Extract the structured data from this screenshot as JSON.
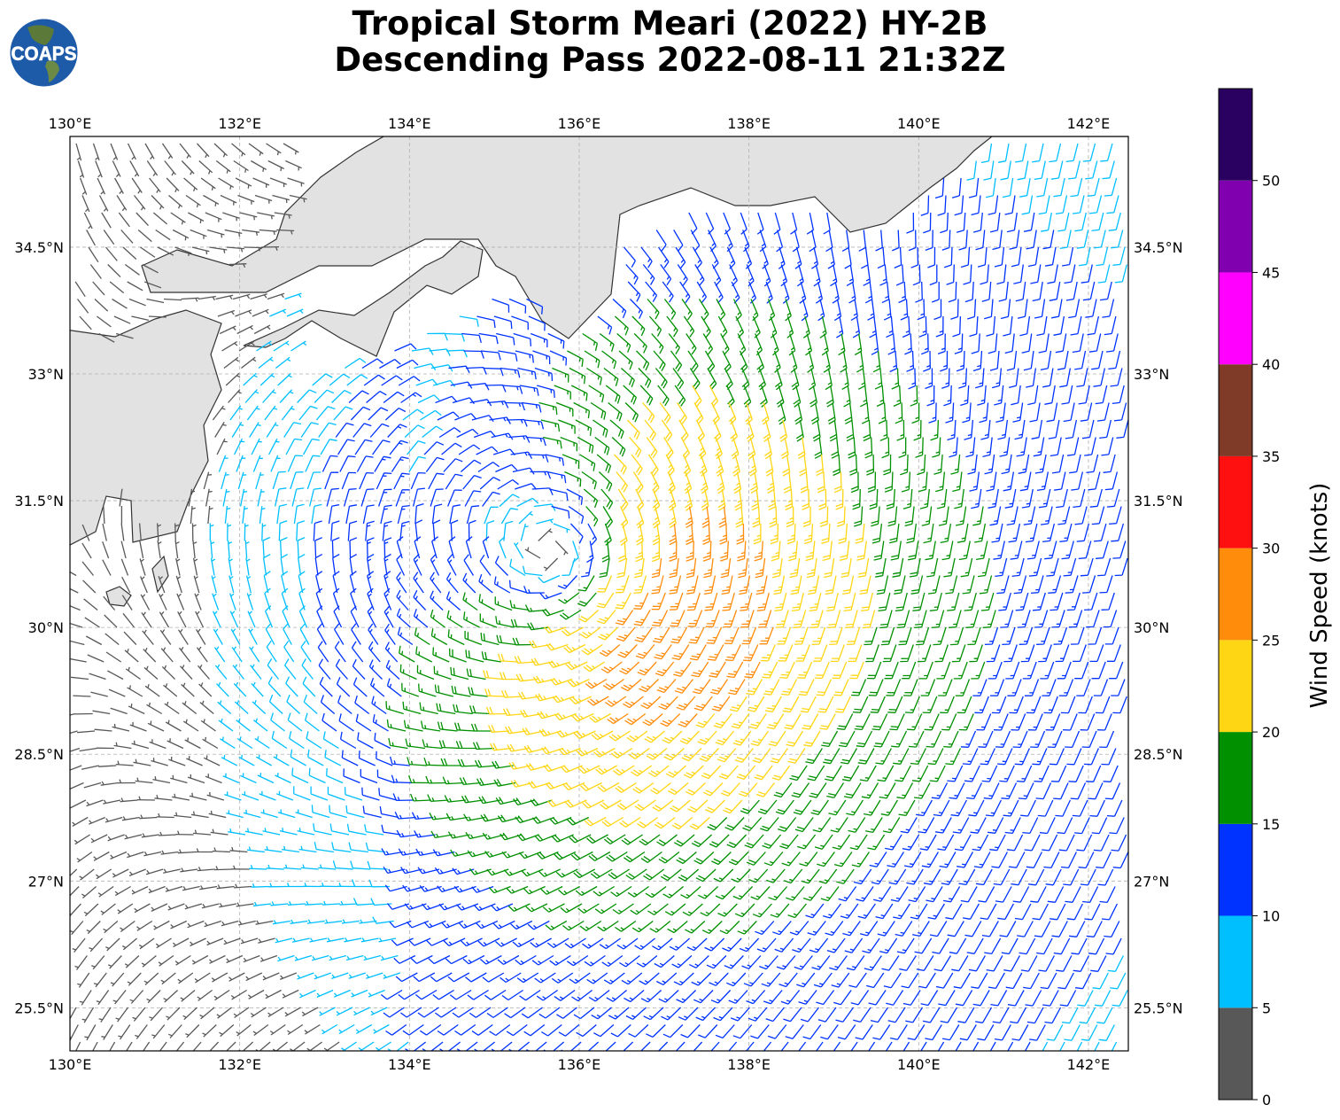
{
  "title": {
    "line1": "Tropical Storm Meari (2022) HY-2B",
    "line2": "Descending Pass 2022-08-11 21:32Z"
  },
  "logo": {
    "text": "COAPS"
  },
  "map": {
    "lon_range": [
      130,
      142.47
    ],
    "lat_range": [
      24.99,
      35.81
    ],
    "lon_ticks": [
      {
        "value": 130,
        "label": "130°E"
      },
      {
        "value": 132,
        "label": "132°E"
      },
      {
        "value": 134,
        "label": "134°E"
      },
      {
        "value": 136,
        "label": "136°E"
      },
      {
        "value": 138,
        "label": "138°E"
      },
      {
        "value": 140,
        "label": "140°E"
      },
      {
        "value": 142,
        "label": "142°E"
      }
    ],
    "lat_ticks": [
      {
        "value": 34.5,
        "label": "34.5°N"
      },
      {
        "value": 33,
        "label": "33°N"
      },
      {
        "value": 31.5,
        "label": "31.5°N"
      },
      {
        "value": 30,
        "label": "30°N"
      },
      {
        "value": 28.5,
        "label": "28.5°N"
      },
      {
        "value": 27,
        "label": "27°N"
      },
      {
        "value": 25.5,
        "label": "25.5°N"
      }
    ],
    "storm_center": {
      "lon": 135.9,
      "lat": 30.8
    },
    "land_color": "#e2e2e2",
    "coast_color": "#333333",
    "grid_color": "#b0b0b0"
  },
  "colorbar": {
    "label": "Wind Speed (knots)",
    "range": [
      0,
      55
    ],
    "ticks": [
      {
        "value": 0,
        "label": "0"
      },
      {
        "value": 5,
        "label": "5"
      },
      {
        "value": 10,
        "label": "10"
      },
      {
        "value": 15,
        "label": "15"
      },
      {
        "value": 20,
        "label": "20"
      },
      {
        "value": 25,
        "label": "25"
      },
      {
        "value": 30,
        "label": "30"
      },
      {
        "value": 35,
        "label": "35"
      },
      {
        "value": 40,
        "label": "40"
      },
      {
        "value": 45,
        "label": "45"
      },
      {
        "value": 50,
        "label": "50"
      }
    ],
    "bins": [
      {
        "min": 0,
        "max": 5,
        "color": "#585858"
      },
      {
        "min": 5,
        "max": 10,
        "color": "#00bfff"
      },
      {
        "min": 10,
        "max": 15,
        "color": "#0033ff"
      },
      {
        "min": 15,
        "max": 20,
        "color": "#009000"
      },
      {
        "min": 20,
        "max": 25,
        "color": "#ffd614"
      },
      {
        "min": 25,
        "max": 30,
        "color": "#ff8c0a"
      },
      {
        "min": 30,
        "max": 35,
        "color": "#ff1010"
      },
      {
        "min": 35,
        "max": 40,
        "color": "#7f3a28"
      },
      {
        "min": 40,
        "max": 45,
        "color": "#ff00ff"
      },
      {
        "min": 45,
        "max": 50,
        "color": "#8000b0"
      },
      {
        "min": 50,
        "max": 55,
        "color": "#2a0060"
      }
    ]
  }
}
